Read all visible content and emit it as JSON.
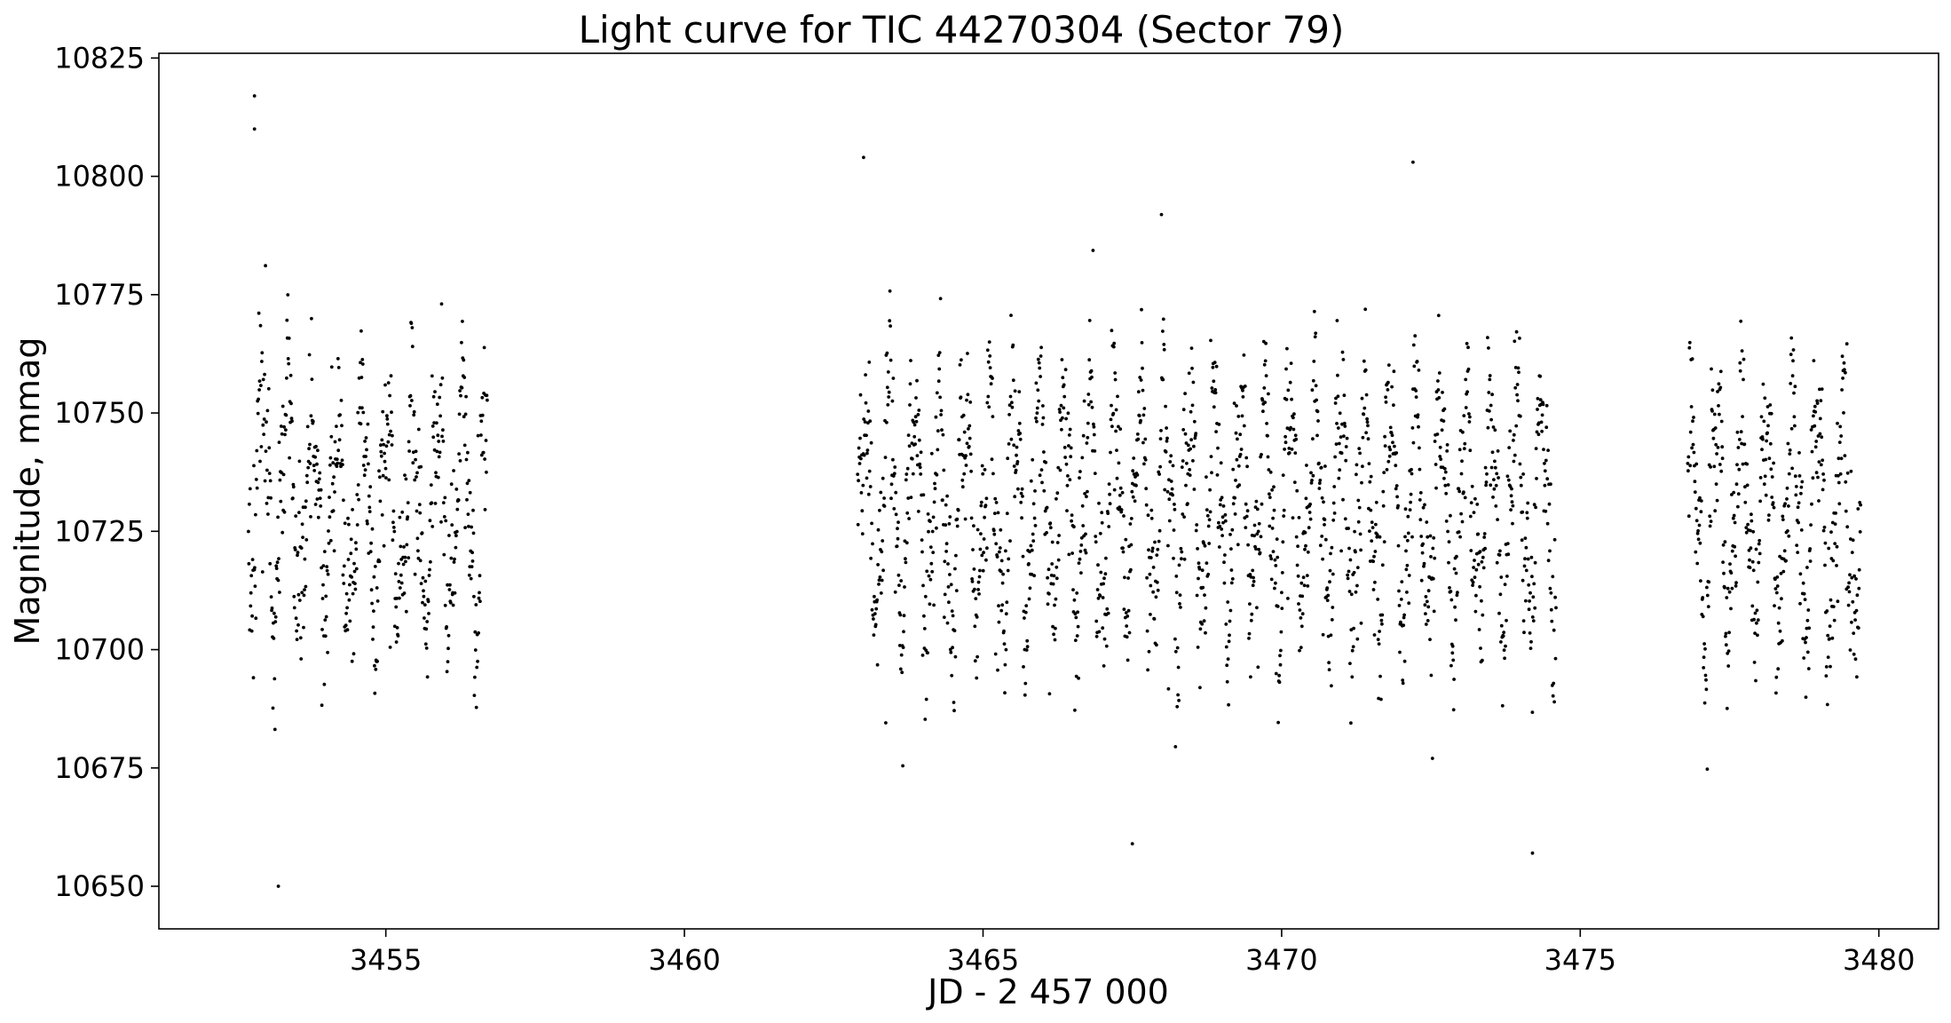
{
  "chart_data": {
    "type": "scatter",
    "title": "Light curve for TIC 44270304 (Sector 79)",
    "xlabel": "JD - 2 457 000",
    "ylabel": "Magnitude, mmag",
    "xlim": [
      3451.2,
      3481.0
    ],
    "ylim": [
      10641,
      10826
    ],
    "y_inverted": false,
    "grid": false,
    "legend": "none",
    "marker_color": "#000000",
    "xticks": [
      3455,
      3460,
      3465,
      3470,
      3475,
      3480
    ],
    "yticks": [
      10650,
      10675,
      10700,
      10725,
      10750,
      10775,
      10800,
      10825
    ],
    "segments": [
      {
        "x_start": 3452.7,
        "x_end": 3456.7,
        "mean": 10730,
        "amplitude": 40
      },
      {
        "x_start": 3462.9,
        "x_end": 3474.6,
        "mean": 10730,
        "amplitude": 40
      },
      {
        "x_start": 3476.8,
        "x_end": 3479.7,
        "mean": 10728,
        "amplitude": 40
      }
    ],
    "notable_points": [
      {
        "x": 3452.8,
        "y": 10817
      },
      {
        "x": 3452.8,
        "y": 10810
      },
      {
        "x": 3453.2,
        "y": 10650
      },
      {
        "x": 3463.0,
        "y": 10804
      },
      {
        "x": 3472.2,
        "y": 10803
      },
      {
        "x": 3474.2,
        "y": 10657
      },
      {
        "x": 3467.5,
        "y": 10659
      }
    ]
  }
}
